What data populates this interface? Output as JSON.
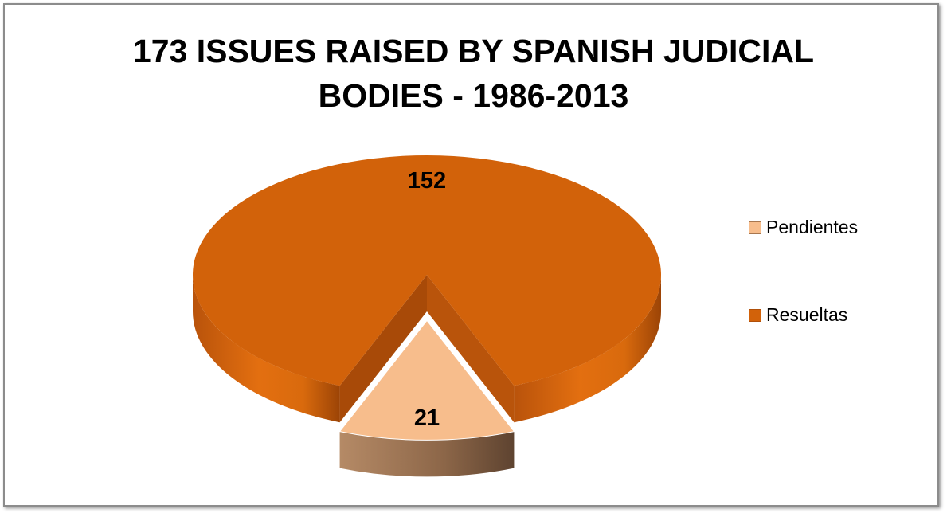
{
  "chart_data": {
    "type": "pie",
    "title_lines": [
      "173 ISSUES RAISED BY SPANISH JUDICIAL",
      "BODIES  - 1986-2013"
    ],
    "slices": [
      {
        "label": "Pendientes",
        "value": 21,
        "data_label": "21",
        "color": "#f7bd8c",
        "side_color": "#a8774f",
        "exploded": true
      },
      {
        "label": "Resueltas",
        "value": 152,
        "data_label": "152",
        "color": "#d2620a",
        "side_color": "#b0500a",
        "exploded": false
      }
    ],
    "legend_position": "right",
    "style": "3d-exploded"
  }
}
